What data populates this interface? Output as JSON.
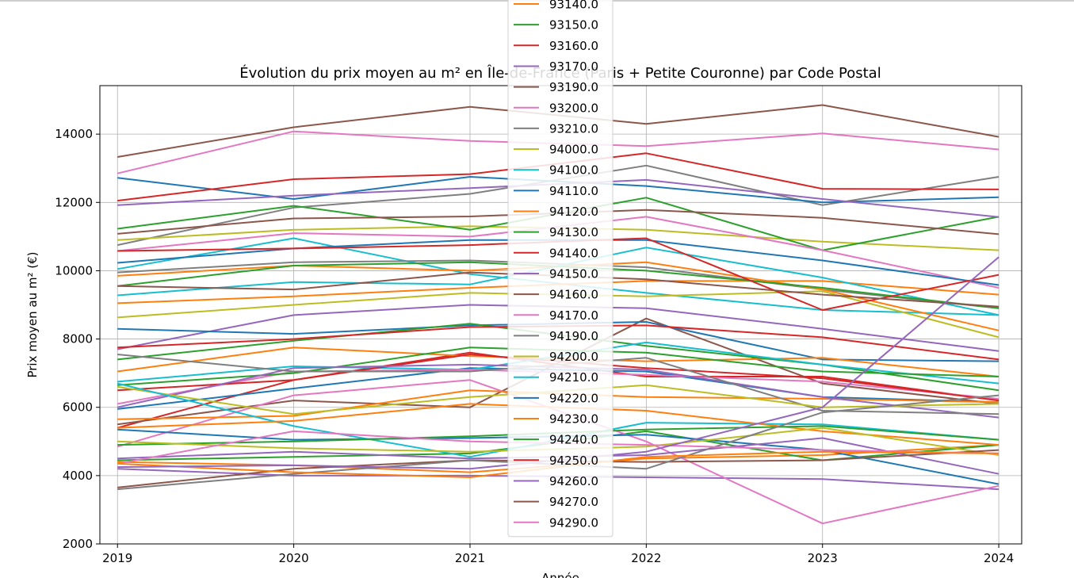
{
  "chart_data": {
    "type": "line",
    "title": "Évolution du prix moyen au m² en Île-de-France (Paris + Petite Couronne) par Code Postal",
    "xlabel": "Année",
    "ylabel": "Prix moyen au m² (€)",
    "x": [
      2019,
      2020,
      2021,
      2022,
      2023,
      2024
    ],
    "x_tick_labels": [
      "2019",
      "2020",
      "2021",
      "2022",
      "2023",
      "2024"
    ],
    "y_ticks": [
      2000,
      4000,
      6000,
      8000,
      10000,
      12000,
      14000
    ],
    "y_tick_labels": [
      "2000",
      "4000",
      "6000",
      "8000",
      "10000",
      "12000",
      "14000"
    ],
    "xlim": [
      2018.9,
      2024.13
    ],
    "ylim": [
      2000,
      15420
    ],
    "grid": true,
    "legend_position": "center-top (overlapping plot)",
    "series": [
      {
        "name": "93140.0",
        "color": "#ff7f0e",
        "values": [
          4400,
          4300,
          4100,
          4500,
          4600,
          4900
        ]
      },
      {
        "name": "93150.0",
        "color": "#2ca02c",
        "values": [
          4450,
          4550,
          4650,
          5300,
          4450,
          4900
        ]
      },
      {
        "name": "93160.0",
        "color": "#d62728",
        "values": [
          5400,
          6800,
          7600,
          6900,
          6900,
          6200
        ]
      },
      {
        "name": "93170.0",
        "color": "#9467bd",
        "values": [
          7700,
          8700,
          9000,
          8900,
          8300,
          7650
        ]
      },
      {
        "name": "93190.0",
        "color": "#8c564b",
        "values": [
          13330,
          14200,
          14800,
          14300,
          14850,
          13920
        ]
      },
      {
        "name": "93200.0",
        "color": "#e377c2",
        "values": [
          12850,
          14080,
          13800,
          13650,
          14020,
          13550
        ]
      },
      {
        "name": "93210.0",
        "color": "#7f7f7f",
        "values": [
          10750,
          11850,
          12250,
          13080,
          11920,
          12750
        ]
      },
      {
        "name": "94000.0",
        "color": "#bcbd22",
        "values": [
          10900,
          11200,
          11300,
          11200,
          10850,
          10600
        ]
      },
      {
        "name": "94100.0",
        "color": "#17becf",
        "values": [
          10050,
          10950,
          9900,
          9350,
          8850,
          8700
        ]
      },
      {
        "name": "94110.0",
        "color": "#1f77b4",
        "values": [
          12720,
          12100,
          12750,
          12480,
          12000,
          12150
        ]
      },
      {
        "name": "94120.0",
        "color": "#ff7f0e",
        "values": [
          9050,
          9250,
          9500,
          9700,
          9700,
          9300
        ]
      },
      {
        "name": "94130.0",
        "color": "#2ca02c",
        "values": [
          11230,
          11900,
          11200,
          12140,
          10600,
          11580
        ]
      },
      {
        "name": "94140.0",
        "color": "#d62728",
        "values": [
          12050,
          12680,
          12830,
          13440,
          12400,
          12380
        ]
      },
      {
        "name": "94150.0",
        "color": "#9467bd",
        "values": [
          11920,
          12200,
          12420,
          12660,
          12100,
          11570
        ]
      },
      {
        "name": "94160.0",
        "color": "#8c564b",
        "values": [
          11080,
          11530,
          11590,
          11780,
          11550,
          11070
        ]
      },
      {
        "name": "94170.0",
        "color": "#e377c2",
        "values": [
          10580,
          11100,
          11000,
          11580,
          10600,
          9500
        ]
      },
      {
        "name": "94190.0",
        "color": "#7f7f7f",
        "values": [
          9950,
          10250,
          10300,
          10100,
          9450,
          8900
        ]
      },
      {
        "name": "94200.0",
        "color": "#bcbd22",
        "values": [
          8630,
          9000,
          9350,
          9250,
          9400,
          8050
        ]
      },
      {
        "name": "94210.0",
        "color": "#17becf",
        "values": [
          9280,
          9670,
          9600,
          10680,
          9800,
          8700
        ]
      },
      {
        "name": "94220.0",
        "color": "#1f77b4",
        "values": [
          10230,
          10650,
          10900,
          10900,
          10300,
          9580
        ]
      },
      {
        "name": "94230.0",
        "color": "#ff7f0e",
        "values": [
          9850,
          10150,
          10000,
          10250,
          9450,
          8250
        ]
      },
      {
        "name": "94240.0",
        "color": "#2ca02c",
        "values": [
          9550,
          10150,
          10250,
          10000,
          9500,
          8900
        ]
      },
      {
        "name": "94250.0",
        "color": "#d62728",
        "values": [
          10580,
          10650,
          10750,
          10950,
          8850,
          9880
        ]
      },
      {
        "name": "94260.0",
        "color": "#9467bd",
        "values": [
          4200,
          4000,
          4000,
          3950,
          3900,
          3600
        ]
      },
      {
        "name": "94270.0",
        "color": "#8c564b",
        "values": [
          5500,
          6200,
          6000,
          8600,
          6700,
          6100
        ]
      },
      {
        "name": "94290.0",
        "color": "#e377c2",
        "values": [
          4850,
          6350,
          6800,
          5000,
          2600,
          3700
        ]
      },
      {
        "name": "",
        "color": "#1f77b4",
        "values": [
          8300,
          8150,
          8400,
          8500,
          7400,
          7350
        ]
      },
      {
        "name": "",
        "color": "#ff7f0e",
        "values": [
          7050,
          7750,
          7500,
          7350,
          7450,
          6900
        ]
      },
      {
        "name": "",
        "color": "#2ca02c",
        "values": [
          7400,
          7950,
          8450,
          7800,
          7250,
          6500
        ]
      },
      {
        "name": "",
        "color": "#d62728",
        "values": [
          7750,
          8000,
          8350,
          8400,
          8050,
          7400
        ]
      },
      {
        "name": "",
        "color": "#8c564b",
        "values": [
          9550,
          9450,
          9950,
          9750,
          9300,
          8950
        ]
      },
      {
        "name": "",
        "color": "#1f77b4",
        "values": [
          5950,
          6550,
          7150,
          7050,
          6300,
          6150
        ]
      },
      {
        "name": "",
        "color": "#17becf",
        "values": [
          6750,
          7200,
          7100,
          7900,
          7250,
          6700
        ]
      },
      {
        "name": "",
        "color": "#e377c2",
        "values": [
          6100,
          7050,
          7100,
          6950,
          6750,
          6250
        ]
      },
      {
        "name": "",
        "color": "#ff7f0e",
        "values": [
          5650,
          5750,
          6500,
          6300,
          6250,
          6150
        ]
      },
      {
        "name": "",
        "color": "#2ca02c",
        "values": [
          6650,
          7000,
          7750,
          7600,
          7050,
          6900
        ]
      },
      {
        "name": "",
        "color": "#d62728",
        "values": [
          6500,
          6800,
          7550,
          7150,
          6850,
          6200
        ]
      },
      {
        "name": "",
        "color": "#9467bd",
        "values": [
          6000,
          7150,
          7250,
          7100,
          6300,
          5700
        ]
      },
      {
        "name": "",
        "color": "#7f7f7f",
        "values": [
          7550,
          7050,
          7050,
          7450,
          5900,
          5800
        ]
      },
      {
        "name": "",
        "color": "#bcbd22",
        "values": [
          6600,
          5800,
          6300,
          6650,
          6000,
          6100
        ]
      },
      {
        "name": "",
        "color": "#17becf",
        "values": [
          6700,
          5450,
          4550,
          5550,
          5500,
          5050
        ]
      },
      {
        "name": "",
        "color": "#1f77b4",
        "values": [
          5350,
          5050,
          5100,
          5200,
          4750,
          3750
        ]
      },
      {
        "name": "",
        "color": "#ff7f0e",
        "values": [
          5400,
          5600,
          6100,
          5900,
          5300,
          4900
        ]
      },
      {
        "name": "",
        "color": "#2ca02c",
        "values": [
          4900,
          5000,
          5150,
          5350,
          5450,
          5050
        ]
      },
      {
        "name": "",
        "color": "#bcbd22",
        "values": [
          5000,
          4800,
          4700,
          4850,
          5400,
          4600
        ]
      },
      {
        "name": "",
        "color": "#9467bd",
        "values": [
          4500,
          4700,
          4500,
          4600,
          5100,
          4050
        ]
      },
      {
        "name": "",
        "color": "#8c564b",
        "values": [
          3650,
          4200,
          4450,
          4400,
          4450,
          4750
        ]
      },
      {
        "name": "",
        "color": "#7f7f7f",
        "values": [
          3600,
          4050,
          4450,
          4200,
          5850,
          6350
        ]
      },
      {
        "name": "",
        "color": "#e377c2",
        "values": [
          4350,
          5300,
          5000,
          4900,
          4750,
          4650
        ]
      },
      {
        "name": "",
        "color": "#ff7f0e",
        "values": [
          4350,
          4100,
          3950,
          4550,
          4700,
          4650
        ]
      },
      {
        "name": "",
        "color": "#9467bd",
        "values": [
          4250,
          4300,
          4200,
          4700,
          6000,
          10400
        ]
      }
    ]
  }
}
